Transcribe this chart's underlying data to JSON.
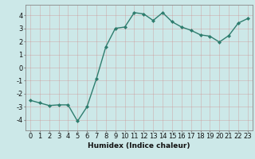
{
  "x": [
    0,
    1,
    2,
    3,
    4,
    5,
    6,
    7,
    8,
    9,
    10,
    11,
    12,
    13,
    14,
    15,
    16,
    17,
    18,
    19,
    20,
    21,
    22,
    23
  ],
  "y": [
    -2.5,
    -2.7,
    -2.9,
    -2.85,
    -2.85,
    -4.1,
    -3.0,
    -0.85,
    1.6,
    3.0,
    3.1,
    4.2,
    4.1,
    3.6,
    4.2,
    3.5,
    3.1,
    2.85,
    2.5,
    2.4,
    1.95,
    2.45,
    3.4,
    3.75
  ],
  "line_color": "#2e7d6e",
  "marker": "D",
  "marker_size": 2,
  "bg_color": "#cce8e8",
  "grid_color": "#aad0d0",
  "xlabel": "Humidex (Indice chaleur)",
  "ylim": [
    -4.8,
    4.8
  ],
  "xlim": [
    -0.5,
    23.5
  ],
  "yticks": [
    -4,
    -3,
    -2,
    -1,
    0,
    1,
    2,
    3,
    4
  ],
  "xticks": [
    0,
    1,
    2,
    3,
    4,
    5,
    6,
    7,
    8,
    9,
    10,
    11,
    12,
    13,
    14,
    15,
    16,
    17,
    18,
    19,
    20,
    21,
    22,
    23
  ],
  "xlabel_fontsize": 6.5,
  "tick_fontsize": 6,
  "line_width": 1.0
}
